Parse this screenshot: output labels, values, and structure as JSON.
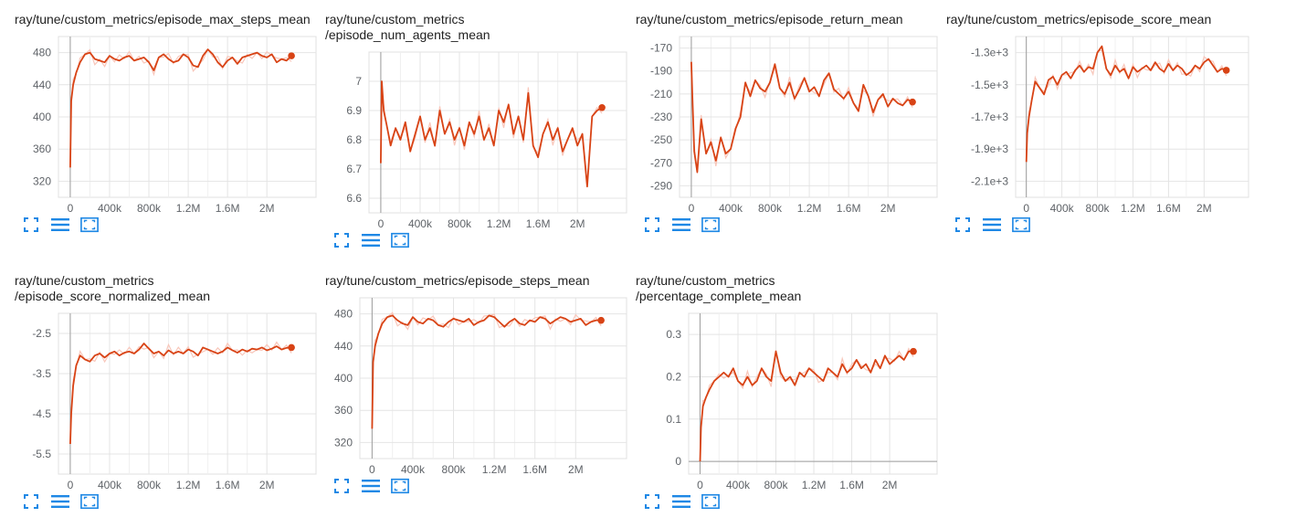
{
  "ui": {
    "accent": "#1e88e5",
    "line_color": "#d84315",
    "raw_color": "#f8c7bb"
  },
  "chart_data": [
    {
      "type": "line",
      "title": "ray/tune/custom_metrics/episode_max_steps_mean",
      "x_ticks": [
        "0",
        "400k",
        "800k",
        "1.2M",
        "1.6M",
        "2M"
      ],
      "x_tick_values": [
        0,
        400000,
        800000,
        1200000,
        1600000,
        2000000
      ],
      "y_ticks": [
        "480",
        "440",
        "400",
        "360",
        "320"
      ],
      "y_tick_values": [
        480,
        440,
        400,
        360,
        320
      ],
      "xlim": [
        -120000,
        2500000
      ],
      "ylim": [
        300,
        500
      ],
      "series": [
        {
          "x": [
            0,
            10000,
            30000,
            60000,
            100000,
            150000,
            200000,
            250000,
            300000,
            350000,
            400000,
            450000,
            500000,
            550000,
            600000,
            650000,
            700000,
            750000,
            800000,
            850000,
            900000,
            950000,
            1000000,
            1050000,
            1100000,
            1150000,
            1200000,
            1250000,
            1300000,
            1350000,
            1400000,
            1450000,
            1500000,
            1550000,
            1600000,
            1650000,
            1700000,
            1750000,
            1800000,
            1850000,
            1900000,
            1950000,
            2000000,
            2050000,
            2100000,
            2150000,
            2200000,
            2250000
          ],
          "y": [
            337,
            420,
            440,
            455,
            468,
            478,
            480,
            472,
            470,
            468,
            476,
            472,
            470,
            474,
            476,
            470,
            472,
            474,
            468,
            458,
            474,
            478,
            472,
            468,
            470,
            478,
            474,
            464,
            462,
            476,
            484,
            478,
            468,
            462,
            470,
            474,
            466,
            474,
            476,
            478,
            480,
            476,
            474,
            478,
            468,
            472,
            470,
            476
          ]
        }
      ]
    },
    {
      "type": "line",
      "title": "ray/tune/custom_metrics\n/episode_num_agents_mean",
      "x_ticks": [
        "0",
        "400k",
        "800k",
        "1.2M",
        "1.6M",
        "2M"
      ],
      "x_tick_values": [
        0,
        400000,
        800000,
        1200000,
        1600000,
        2000000
      ],
      "y_ticks": [
        "7",
        "6.9",
        "6.8",
        "6.7",
        "6.6"
      ],
      "y_tick_values": [
        7,
        6.9,
        6.8,
        6.7,
        6.6
      ],
      "xlim": [
        -120000,
        2500000
      ],
      "ylim": [
        6.55,
        7.1
      ],
      "series": [
        {
          "x": [
            0,
            10000,
            30000,
            60000,
            100000,
            150000,
            200000,
            250000,
            300000,
            350000,
            400000,
            450000,
            500000,
            550000,
            600000,
            650000,
            700000,
            750000,
            800000,
            850000,
            900000,
            950000,
            1000000,
            1050000,
            1100000,
            1150000,
            1200000,
            1250000,
            1300000,
            1350000,
            1400000,
            1450000,
            1500000,
            1550000,
            1600000,
            1650000,
            1700000,
            1750000,
            1800000,
            1850000,
            1900000,
            1950000,
            2000000,
            2050000,
            2100000,
            2150000,
            2200000,
            2250000
          ],
          "y": [
            6.72,
            7.0,
            6.9,
            6.85,
            6.78,
            6.84,
            6.8,
            6.86,
            6.76,
            6.82,
            6.88,
            6.8,
            6.84,
            6.78,
            6.9,
            6.82,
            6.86,
            6.8,
            6.84,
            6.78,
            6.86,
            6.82,
            6.88,
            6.8,
            6.84,
            6.78,
            6.9,
            6.86,
            6.92,
            6.82,
            6.88,
            6.8,
            6.96,
            6.78,
            6.74,
            6.82,
            6.86,
            6.8,
            6.84,
            6.76,
            6.8,
            6.84,
            6.78,
            6.82,
            6.64,
            6.88,
            6.9,
            6.91
          ]
        }
      ]
    },
    {
      "type": "line",
      "title": "ray/tune/custom_metrics/episode_return_mean",
      "x_ticks": [
        "0",
        "400k",
        "800k",
        "1.2M",
        "1.6M",
        "2M"
      ],
      "x_tick_values": [
        0,
        400000,
        800000,
        1200000,
        1600000,
        2000000
      ],
      "y_ticks": [
        "-170",
        "-190",
        "-210",
        "-230",
        "-250",
        "-270",
        "-290"
      ],
      "y_tick_values": [
        -170,
        -190,
        -210,
        -230,
        -250,
        -270,
        -290
      ],
      "xlim": [
        -120000,
        2500000
      ],
      "ylim": [
        -300,
        -160
      ],
      "series": [
        {
          "x": [
            0,
            10000,
            30000,
            60000,
            100000,
            150000,
            200000,
            250000,
            300000,
            350000,
            400000,
            450000,
            500000,
            550000,
            600000,
            650000,
            700000,
            750000,
            800000,
            850000,
            900000,
            950000,
            1000000,
            1050000,
            1100000,
            1150000,
            1200000,
            1250000,
            1300000,
            1350000,
            1400000,
            1450000,
            1500000,
            1550000,
            1600000,
            1650000,
            1700000,
            1750000,
            1800000,
            1850000,
            1900000,
            1950000,
            2000000,
            2050000,
            2100000,
            2150000,
            2200000,
            2250000
          ],
          "y": [
            -182,
            -210,
            -260,
            -278,
            -232,
            -262,
            -252,
            -268,
            -248,
            -262,
            -258,
            -240,
            -230,
            -200,
            -212,
            -198,
            -205,
            -208,
            -200,
            -184,
            -205,
            -210,
            -200,
            -214,
            -206,
            -196,
            -208,
            -204,
            -212,
            -198,
            -192,
            -206,
            -210,
            -214,
            -208,
            -218,
            -225,
            -202,
            -212,
            -226,
            -215,
            -210,
            -221,
            -214,
            -218,
            -220,
            -215,
            -217
          ]
        }
      ]
    },
    {
      "type": "line",
      "title": "ray/tune/custom_metrics/episode_score_mean",
      "x_ticks": [
        "0",
        "400k",
        "800k",
        "1.2M",
        "1.6M",
        "2M"
      ],
      "x_tick_values": [
        0,
        400000,
        800000,
        1200000,
        1600000,
        2000000
      ],
      "y_ticks": [
        "-1.3e+3",
        "-1.5e+3",
        "-1.7e+3",
        "-1.9e+3",
        "-2.1e+3"
      ],
      "y_tick_values": [
        -1300,
        -1500,
        -1700,
        -1900,
        -2100
      ],
      "xlim": [
        -120000,
        2500000
      ],
      "ylim": [
        -2200,
        -1200
      ],
      "series": [
        {
          "x": [
            0,
            10000,
            30000,
            60000,
            100000,
            150000,
            200000,
            250000,
            300000,
            350000,
            400000,
            450000,
            500000,
            550000,
            600000,
            650000,
            700000,
            750000,
            800000,
            850000,
            900000,
            950000,
            1000000,
            1050000,
            1100000,
            1150000,
            1200000,
            1250000,
            1300000,
            1350000,
            1400000,
            1450000,
            1500000,
            1550000,
            1600000,
            1650000,
            1700000,
            1750000,
            1800000,
            1850000,
            1900000,
            1950000,
            2000000,
            2050000,
            2100000,
            2150000,
            2200000,
            2250000
          ],
          "y": [
            -1980,
            -1800,
            -1700,
            -1600,
            -1480,
            -1520,
            -1560,
            -1470,
            -1450,
            -1500,
            -1440,
            -1420,
            -1460,
            -1410,
            -1380,
            -1420,
            -1390,
            -1400,
            -1300,
            -1260,
            -1400,
            -1440,
            -1380,
            -1420,
            -1400,
            -1460,
            -1390,
            -1420,
            -1400,
            -1380,
            -1410,
            -1360,
            -1400,
            -1420,
            -1370,
            -1410,
            -1380,
            -1400,
            -1440,
            -1420,
            -1380,
            -1400,
            -1360,
            -1340,
            -1380,
            -1420,
            -1400,
            -1410
          ]
        }
      ]
    },
    {
      "type": "line",
      "title": "ray/tune/custom_metrics\n/episode_score_normalized_mean",
      "x_ticks": [
        "0",
        "400k",
        "800k",
        "1.2M",
        "1.6M",
        "2M"
      ],
      "x_tick_values": [
        0,
        400000,
        800000,
        1200000,
        1600000,
        2000000
      ],
      "y_ticks": [
        "-2.5",
        "-3.5",
        "-4.5",
        "-5.5"
      ],
      "y_tick_values": [
        -2.5,
        -3.5,
        -4.5,
        -5.5
      ],
      "xlim": [
        -120000,
        2500000
      ],
      "ylim": [
        -6,
        -2
      ],
      "series": [
        {
          "x": [
            0,
            10000,
            30000,
            60000,
            100000,
            150000,
            200000,
            250000,
            300000,
            350000,
            400000,
            450000,
            500000,
            550000,
            600000,
            650000,
            700000,
            750000,
            800000,
            850000,
            900000,
            950000,
            1000000,
            1050000,
            1100000,
            1150000,
            1200000,
            1250000,
            1300000,
            1350000,
            1400000,
            1450000,
            1500000,
            1550000,
            1600000,
            1650000,
            1700000,
            1750000,
            1800000,
            1850000,
            1900000,
            1950000,
            2000000,
            2050000,
            2100000,
            2150000,
            2200000,
            2250000
          ],
          "y": [
            -5.25,
            -4.5,
            -3.8,
            -3.3,
            -3.05,
            -3.15,
            -3.2,
            -3.05,
            -3.0,
            -3.1,
            -3.0,
            -2.95,
            -3.05,
            -2.98,
            -2.95,
            -3.0,
            -2.9,
            -2.75,
            -2.88,
            -3.0,
            -2.95,
            -3.05,
            -2.92,
            -3.0,
            -2.95,
            -3.0,
            -2.9,
            -2.95,
            -3.05,
            -2.85,
            -2.9,
            -2.95,
            -3.0,
            -2.95,
            -2.85,
            -2.92,
            -2.98,
            -2.9,
            -2.95,
            -2.88,
            -2.9,
            -2.85,
            -2.92,
            -2.88,
            -2.82,
            -2.9,
            -2.86,
            -2.85
          ]
        }
      ]
    },
    {
      "type": "line",
      "title": "ray/tune/custom_metrics/episode_steps_mean",
      "x_ticks": [
        "0",
        "400k",
        "800k",
        "1.2M",
        "1.6M",
        "2M"
      ],
      "x_tick_values": [
        0,
        400000,
        800000,
        1200000,
        1600000,
        2000000
      ],
      "y_ticks": [
        "480",
        "440",
        "400",
        "360",
        "320"
      ],
      "y_tick_values": [
        480,
        440,
        400,
        360,
        320
      ],
      "xlim": [
        -120000,
        2500000
      ],
      "ylim": [
        300,
        500
      ],
      "series": [
        {
          "x": [
            0,
            10000,
            30000,
            60000,
            100000,
            150000,
            200000,
            250000,
            300000,
            350000,
            400000,
            450000,
            500000,
            550000,
            600000,
            650000,
            700000,
            750000,
            800000,
            850000,
            900000,
            950000,
            1000000,
            1050000,
            1100000,
            1150000,
            1200000,
            1250000,
            1300000,
            1350000,
            1400000,
            1450000,
            1500000,
            1550000,
            1600000,
            1650000,
            1700000,
            1750000,
            1800000,
            1850000,
            1900000,
            1950000,
            2000000,
            2050000,
            2100000,
            2150000,
            2200000,
            2250000
          ],
          "y": [
            337,
            420,
            440,
            455,
            468,
            476,
            478,
            472,
            468,
            466,
            476,
            470,
            468,
            474,
            472,
            466,
            464,
            470,
            474,
            472,
            470,
            474,
            466,
            470,
            472,
            478,
            476,
            470,
            464,
            470,
            474,
            468,
            466,
            472,
            470,
            476,
            474,
            468,
            472,
            476,
            474,
            470,
            472,
            474,
            466,
            470,
            472,
            472
          ]
        }
      ]
    },
    {
      "type": "line",
      "title": "ray/tune/custom_metrics\n/percentage_complete_mean",
      "x_ticks": [
        "0",
        "400k",
        "800k",
        "1.2M",
        "1.6M",
        "2M"
      ],
      "x_tick_values": [
        0,
        400000,
        800000,
        1200000,
        1600000,
        2000000
      ],
      "y_ticks": [
        "0.3",
        "0.2",
        "0.1",
        "0"
      ],
      "y_tick_values": [
        0.3,
        0.2,
        0.1,
        0
      ],
      "xlim": [
        -120000,
        2500000
      ],
      "ylim": [
        -0.03,
        0.35
      ],
      "series": [
        {
          "x": [
            0,
            10000,
            30000,
            60000,
            100000,
            150000,
            200000,
            250000,
            300000,
            350000,
            400000,
            450000,
            500000,
            550000,
            600000,
            650000,
            700000,
            750000,
            800000,
            850000,
            900000,
            950000,
            1000000,
            1050000,
            1100000,
            1150000,
            1200000,
            1250000,
            1300000,
            1350000,
            1400000,
            1450000,
            1500000,
            1550000,
            1600000,
            1650000,
            1700000,
            1750000,
            1800000,
            1850000,
            1900000,
            1950000,
            2000000,
            2050000,
            2100000,
            2150000,
            2200000,
            2250000
          ],
          "y": [
            0.0,
            0.08,
            0.13,
            0.15,
            0.17,
            0.19,
            0.2,
            0.21,
            0.2,
            0.22,
            0.19,
            0.18,
            0.2,
            0.18,
            0.19,
            0.22,
            0.2,
            0.19,
            0.26,
            0.21,
            0.19,
            0.2,
            0.18,
            0.21,
            0.2,
            0.22,
            0.21,
            0.2,
            0.19,
            0.22,
            0.21,
            0.2,
            0.23,
            0.21,
            0.22,
            0.24,
            0.22,
            0.23,
            0.21,
            0.24,
            0.22,
            0.25,
            0.23,
            0.24,
            0.25,
            0.24,
            0.26,
            0.26
          ]
        }
      ]
    }
  ]
}
